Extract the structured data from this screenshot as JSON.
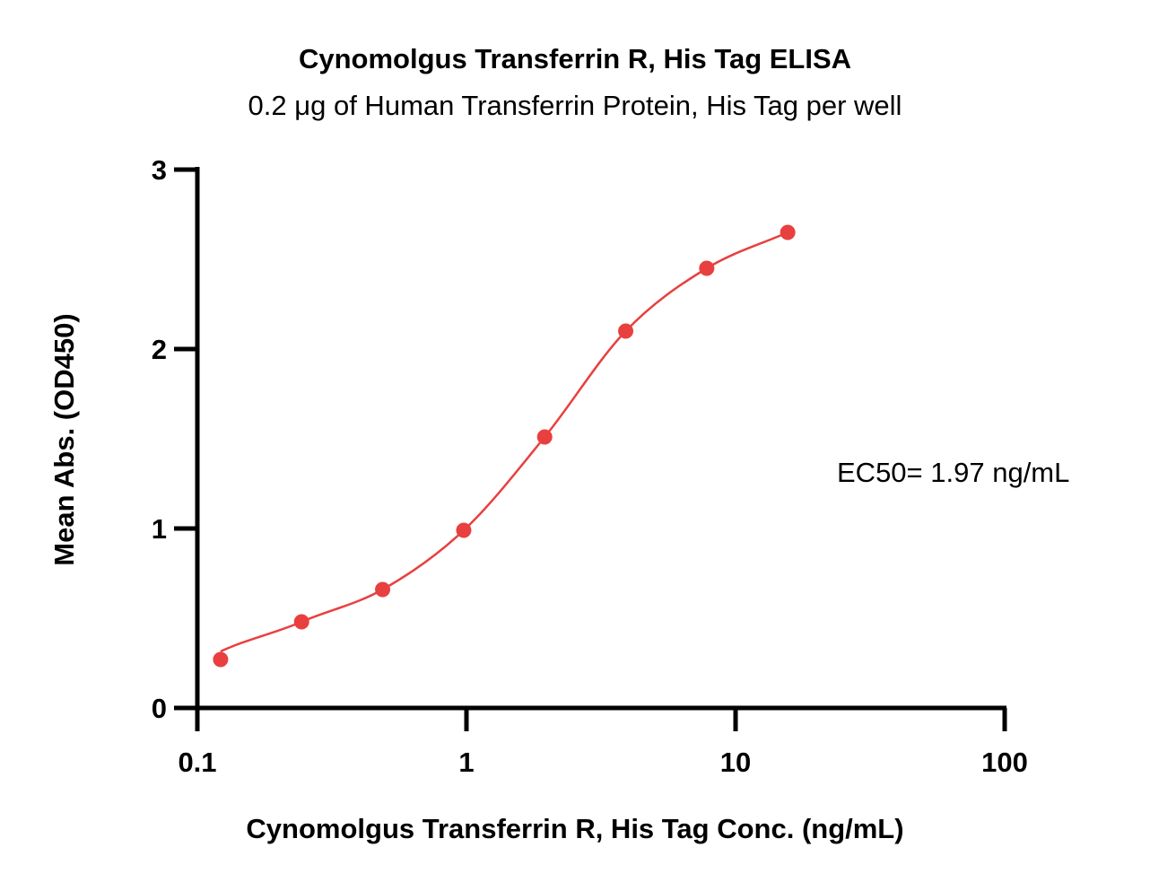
{
  "chart_data": {
    "type": "scatter",
    "title": "Cynomolgus Transferrin R, His Tag ELISA",
    "subtitle": "0.2 μg of Human Transferrin Protein, His Tag per well",
    "xlabel": "Cynomolgus Transferrin R, His Tag Conc. (ng/mL)",
    "ylabel": "Mean Abs. (OD450)",
    "xscale": "log",
    "xlim": [
      0.1,
      100
    ],
    "ylim": [
      0,
      3
    ],
    "xticks": [
      "0.1",
      "1",
      "10",
      "100"
    ],
    "yticks": [
      "0",
      "1",
      "2",
      "3"
    ],
    "grid": false,
    "color": "#e8403f",
    "annotation": "EC50= 1.97 ng/mL",
    "series": [
      {
        "x": [
          0.122,
          0.244,
          0.488,
          0.977,
          1.953,
          3.906,
          7.813,
          15.625
        ],
        "y": [
          0.27,
          0.48,
          0.66,
          0.99,
          1.51,
          2.1,
          2.45,
          2.65
        ],
        "fit": "4PL"
      }
    ]
  }
}
